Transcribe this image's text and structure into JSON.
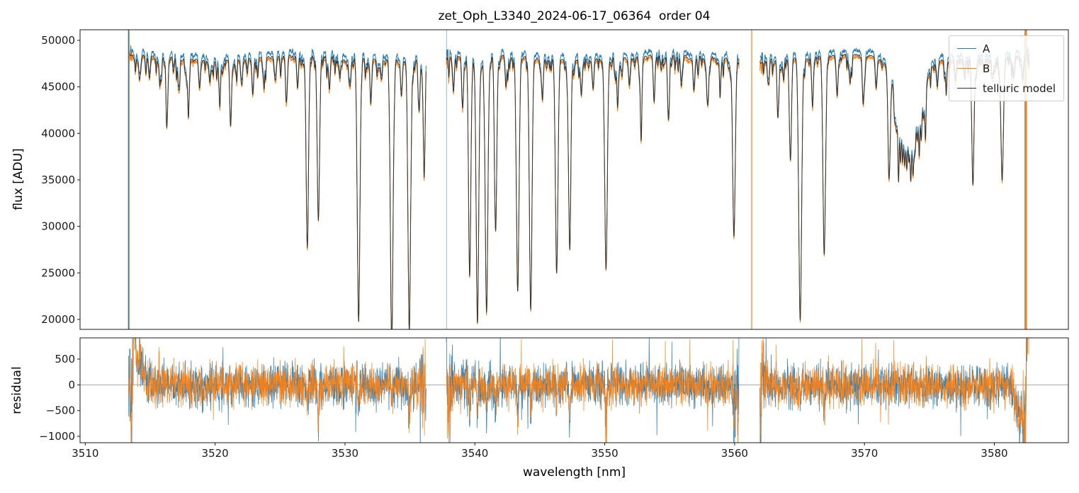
{
  "chart_data": {
    "type": "line",
    "title": "zet_Oph_L3340_2024-06-17_06364  order 04",
    "xlabel": "wavelength [nm]",
    "xlim": [
      3509.6,
      3585.7
    ],
    "xticks": [
      3510,
      3520,
      3530,
      3540,
      3550,
      3560,
      3570,
      3580
    ],
    "grid": false,
    "panels": [
      {
        "name": "flux",
        "ylabel": "flux [ADU]",
        "ylim": [
          18930,
          51140
        ],
        "yticks": [
          20000,
          25000,
          30000,
          35000,
          40000,
          45000,
          50000
        ],
        "legend_position": "upper right"
      },
      {
        "name": "residual",
        "ylabel": "residual",
        "ylim": [
          -1124,
          913
        ],
        "yticks": [
          -1000,
          -500,
          0,
          500
        ],
        "zero_line": true
      }
    ],
    "series": [
      {
        "name": "A",
        "color": "#1f77b4"
      },
      {
        "name": "B",
        "color": "#ff7f0e"
      },
      {
        "name": "telluric model",
        "color": "#2e2e2e"
      }
    ],
    "segments": [
      [
        3513.33,
        3536.25
      ],
      [
        3537.8,
        3560.35
      ],
      [
        3561.95,
        3582.7
      ]
    ],
    "gaps": [
      [
        3536.25,
        3537.8
      ],
      [
        3560.35,
        3561.95
      ]
    ],
    "continuum_level": 48300,
    "continuum_wave": {
      "amp": 250,
      "freq": 0.45
    },
    "absorption_lines": [
      [
        3514.25,
        1600
      ],
      [
        3514.95,
        2400
      ],
      [
        3515.75,
        1900
      ],
      [
        3516.3,
        6300
      ],
      [
        3517.2,
        2900
      ],
      [
        3517.95,
        4300
      ],
      [
        3518.8,
        3200
      ],
      [
        3519.6,
        2400
      ],
      [
        3520.35,
        3700
      ],
      [
        3521.2,
        6800
      ],
      [
        3522.05,
        2400
      ],
      [
        3522.9,
        3500
      ],
      [
        3523.75,
        2900
      ],
      [
        3524.65,
        2500
      ],
      [
        3525.5,
        4800
      ],
      [
        3526.35,
        3500
      ],
      [
        3527.1,
        20800,
        0.09
      ],
      [
        3527.95,
        17800,
        0.09
      ],
      [
        3528.8,
        3600
      ],
      [
        3529.6,
        2200
      ],
      [
        3530.4,
        3000
      ],
      [
        3531.05,
        28400,
        0.1
      ],
      [
        3532.0,
        4200
      ],
      [
        3532.8,
        2200
      ],
      [
        3533.6,
        28500,
        0.1
      ],
      [
        3534.35,
        3900
      ],
      [
        3534.95,
        28200,
        0.1
      ],
      [
        3535.7,
        4900
      ],
      [
        3536.1,
        12600
      ],
      [
        3538.35,
        3300
      ],
      [
        3539.05,
        5400
      ],
      [
        3539.6,
        23800,
        0.09
      ],
      [
        3540.2,
        28300,
        0.1
      ],
      [
        3540.9,
        27800,
        0.1
      ],
      [
        3541.6,
        18300,
        0.09
      ],
      [
        3542.4,
        3400
      ],
      [
        3543.3,
        25200,
        0.1
      ],
      [
        3544.3,
        27200,
        0.1
      ],
      [
        3545.2,
        4300
      ],
      [
        3546.3,
        22700,
        0.1
      ],
      [
        3547.3,
        18700,
        0.09
      ],
      [
        3548.2,
        3800
      ],
      [
        3549.1,
        2800
      ],
      [
        3550.1,
        22700,
        0.1
      ],
      [
        3551.0,
        4300
      ],
      [
        3551.9,
        2800
      ],
      [
        3552.8,
        7200
      ],
      [
        3553.8,
        4300
      ],
      [
        3554.9,
        6800
      ],
      [
        3555.9,
        3300
      ],
      [
        3556.9,
        2800
      ],
      [
        3557.9,
        4300
      ],
      [
        3558.9,
        2800
      ],
      [
        3559.95,
        19200,
        0.1
      ],
      [
        3562.6,
        1800
      ],
      [
        3563.35,
        5200
      ],
      [
        3564.3,
        10700,
        0.08
      ],
      [
        3565.05,
        28300,
        0.11
      ],
      [
        3566.0,
        5200
      ],
      [
        3566.9,
        21200,
        0.1
      ],
      [
        3567.9,
        4300
      ],
      [
        3568.9,
        2800
      ],
      [
        3569.9,
        5200
      ],
      [
        3570.9,
        3300
      ],
      [
        3571.9,
        11200,
        0.09
      ],
      [
        3575.6,
        2400
      ],
      [
        3576.3,
        1700
      ],
      [
        3577.0,
        2200
      ],
      [
        3577.7,
        1400
      ],
      [
        3578.35,
        12200,
        0.09
      ],
      [
        3579.2,
        1500
      ],
      [
        3579.9,
        2100
      ],
      [
        3580.6,
        13200,
        0.1
      ],
      [
        3581.5,
        2400
      ],
      [
        3582.2,
        2100
      ]
    ],
    "band": {
      "center": 3573.4,
      "broad_depth": 7800,
      "sigma_broad": 0.85,
      "comb_start": 3572.3,
      "comb_end": 3574.7,
      "comb_step": 0.16,
      "comb_depth": 6500
    },
    "edge_spikes": [
      [
        3513.33,
        "#1f77b4",
        1.3,
        1.0
      ],
      [
        3513.39,
        "#ff7f0e",
        1.0,
        0.9
      ],
      [
        3537.82,
        "#1f77b4",
        1.0,
        0.5
      ],
      [
        3561.32,
        "#ff7f0e",
        1.2,
        1.0
      ],
      [
        3582.35,
        "#1f77b4",
        1.0,
        0.7
      ],
      [
        3582.44,
        "#ff7f0e",
        2.6,
        1.0
      ]
    ],
    "residual": {
      "sigma": 200,
      "features": [
        [
          3513.52,
          -1100,
          0.05
        ],
        [
          3513.78,
          800,
          0.1
        ],
        [
          3514.15,
          480,
          0.28
        ],
        [
          3537.95,
          -450,
          0.07
        ],
        [
          3560.25,
          -350,
          0.05
        ],
        [
          3561.98,
          -850,
          0.05
        ],
        [
          3562.2,
          380,
          0.1
        ],
        [
          3581.9,
          -650,
          0.22
        ],
        [
          3582.32,
          -1050,
          0.1
        ],
        [
          3582.62,
          1900,
          0.1
        ]
      ]
    }
  }
}
